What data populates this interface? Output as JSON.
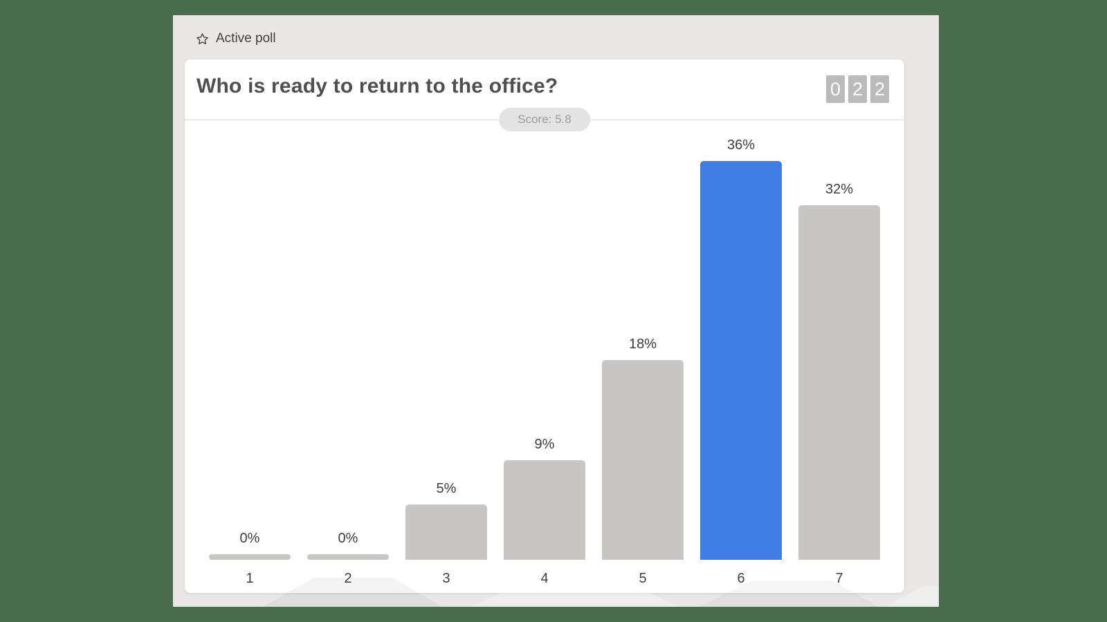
{
  "topbar": {
    "label": "Active poll",
    "icon": "star-outline"
  },
  "card": {
    "title": "Who is ready to return to the office?",
    "score_badge": "Score: 5.8",
    "response_counter": {
      "digits": [
        "0",
        "2",
        "2"
      ]
    }
  },
  "chart_data": {
    "type": "bar",
    "title": "Who is ready to return to the office?",
    "categories": [
      "1",
      "2",
      "3",
      "4",
      "5",
      "6",
      "7"
    ],
    "values": [
      0,
      0,
      5,
      9,
      18,
      36,
      32
    ],
    "value_labels": [
      "0%",
      "0%",
      "5%",
      "9%",
      "18%",
      "36%",
      "32%"
    ],
    "highlight_index": 5,
    "score": 5.8,
    "xlabel": "",
    "ylabel": "",
    "ylim": [
      0,
      40
    ],
    "grid": false,
    "legend": false,
    "colors": {
      "bar": "#c7c6c5",
      "highlight": "#3f7de5"
    }
  },
  "colors": {
    "page_background": "#4a6d4e",
    "app_background": "#e9e8e7",
    "accent_blue": "#3f7de5",
    "bar_gray": "#c7c6c5",
    "counter_box": "#bcbbbb",
    "title_text": "#4f4f4f"
  }
}
